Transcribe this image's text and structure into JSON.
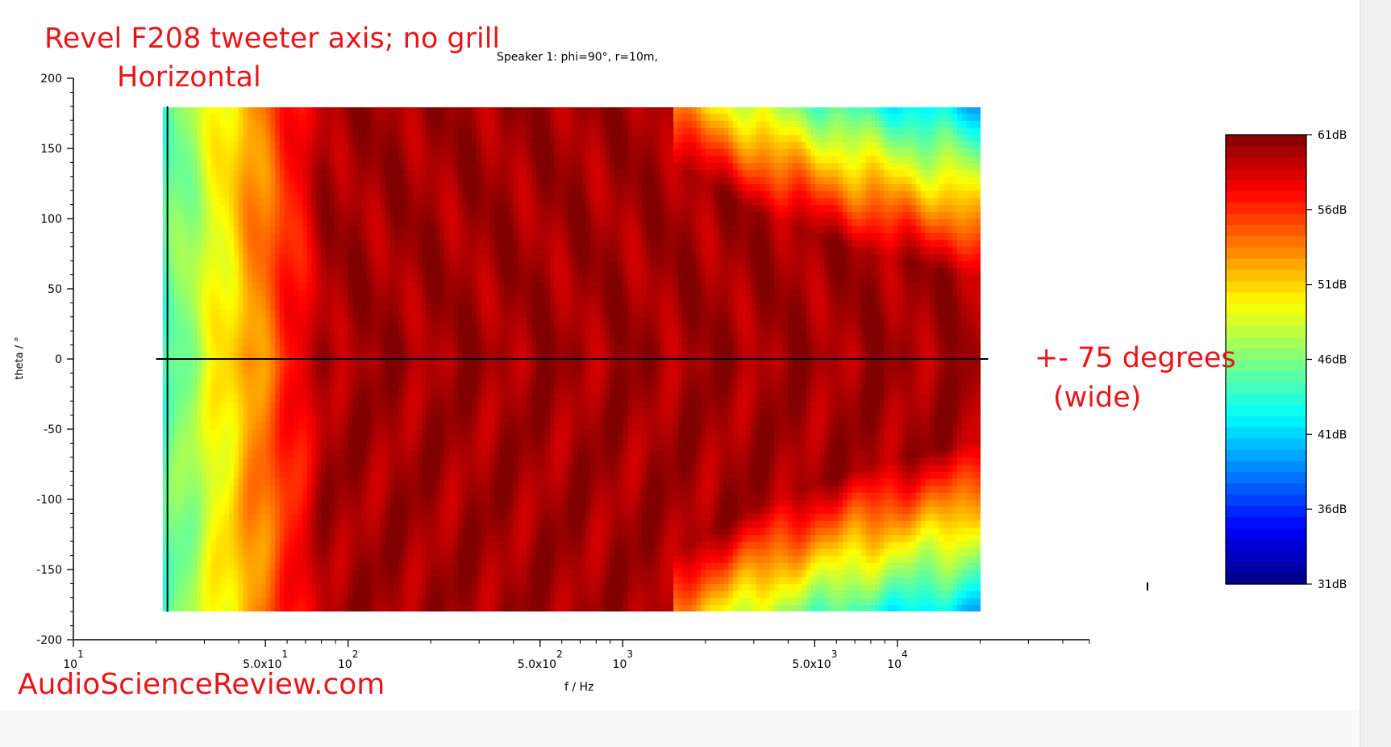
{
  "chart_data": {
    "type": "heatmap",
    "subtitle": "Speaker 1: phi=90°, r=10m,",
    "xlabel": "f / Hz",
    "ylabel": "theta / °",
    "x_scale": "log",
    "xlim": [
      10,
      50000
    ],
    "ylim": [
      -200,
      200
    ],
    "data_x_range": [
      20,
      20000
    ],
    "data_y_range": [
      -180,
      180
    ],
    "x_ticks": [
      {
        "value": 10,
        "base": "10",
        "exp": "1"
      },
      {
        "value": 50,
        "base": "5.0x10",
        "exp": "1"
      },
      {
        "value": 100,
        "base": "10",
        "exp": "2"
      },
      {
        "value": 500,
        "base": "5.0x10",
        "exp": "2"
      },
      {
        "value": 1000,
        "base": "10",
        "exp": "3"
      },
      {
        "value": 5000,
        "base": "5.0x10",
        "exp": "3"
      },
      {
        "value": 10000,
        "base": "10",
        "exp": "4"
      }
    ],
    "y_ticks": [
      {
        "value": 200,
        "label": "200"
      },
      {
        "value": 150,
        "label": "150"
      },
      {
        "value": 100,
        "label": "100"
      },
      {
        "value": 50,
        "label": "50"
      },
      {
        "value": 0,
        "label": "0"
      },
      {
        "value": -50,
        "label": "-50"
      },
      {
        "value": -100,
        "label": "-100"
      },
      {
        "value": -150,
        "label": "-150"
      },
      {
        "value": -200,
        "label": "-200"
      }
    ],
    "colorbar": {
      "min_db": 31,
      "max_db": 61,
      "ticks": [
        {
          "value": 61,
          "label": "61dB"
        },
        {
          "value": 56,
          "label": "56dB"
        },
        {
          "value": 51,
          "label": "51dB"
        },
        {
          "value": 46,
          "label": "46dB"
        },
        {
          "value": 41,
          "label": "41dB"
        },
        {
          "value": 36,
          "label": "36dB"
        },
        {
          "value": 31,
          "label": "31dB"
        }
      ]
    },
    "reference_lines": {
      "vertical_freq_hz": 22,
      "horizontal_theta_deg": 0
    },
    "approx_beamwidth_deg": 75
  },
  "annotations": {
    "title": "Revel F208 tweeter axis; no grill",
    "subtitle": "Horizontal",
    "beamwidth": "+- 75 degrees",
    "beamwidth_note": "(wide)",
    "site": "AudioScienceReview.com"
  },
  "colors": {
    "annotation": "#e8161a",
    "axis": "#000000"
  }
}
